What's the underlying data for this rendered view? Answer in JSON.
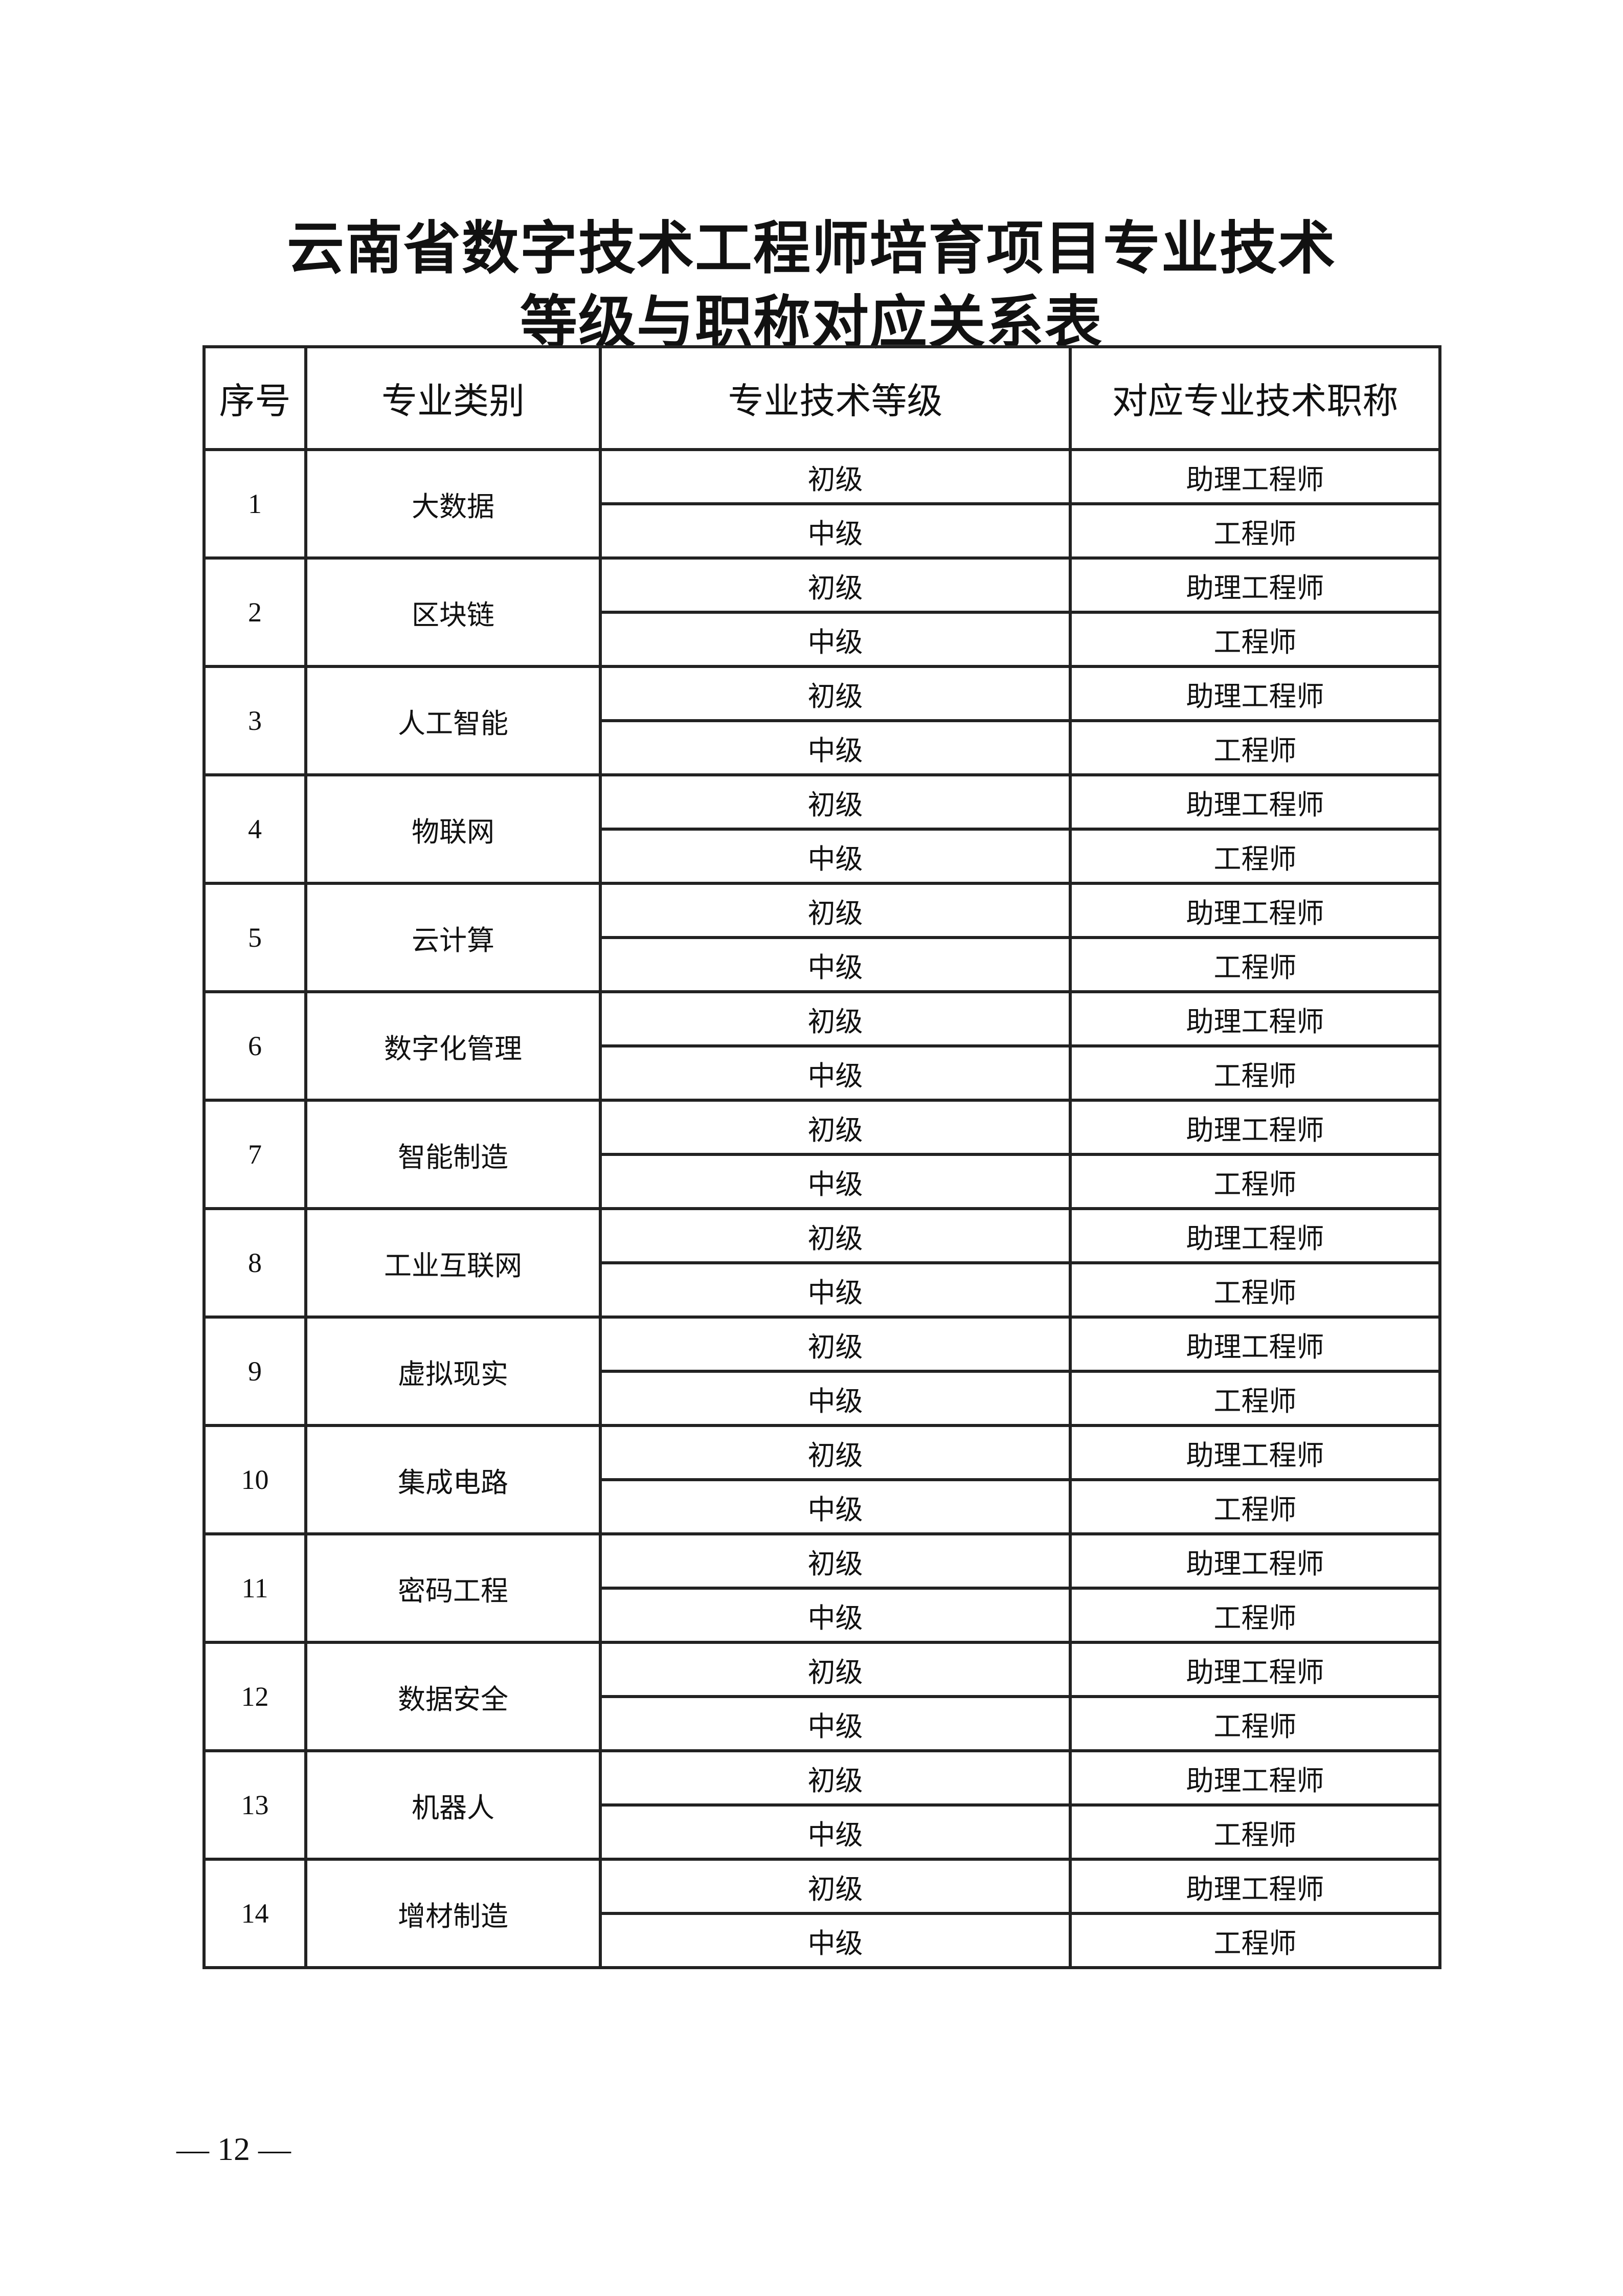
{
  "title_line1": "云南省数字技术工程师培育项目专业技术",
  "title_line2": "等级与职称对应关系表",
  "headers": [
    "序号",
    "专业类别",
    "专业技术等级",
    "对应专业技术职称"
  ],
  "rows": [
    {
      "no": "1",
      "category": "大数据",
      "levels": [
        {
          "level": "初级",
          "title": "助理工程师"
        },
        {
          "level": "中级",
          "title": "工程师"
        }
      ]
    },
    {
      "no": "2",
      "category": "区块链",
      "levels": [
        {
          "level": "初级",
          "title": "助理工程师"
        },
        {
          "level": "中级",
          "title": "工程师"
        }
      ]
    },
    {
      "no": "3",
      "category": "人工智能",
      "levels": [
        {
          "level": "初级",
          "title": "助理工程师"
        },
        {
          "level": "中级",
          "title": "工程师"
        }
      ]
    },
    {
      "no": "4",
      "category": "物联网",
      "levels": [
        {
          "level": "初级",
          "title": "助理工程师"
        },
        {
          "level": "中级",
          "title": "工程师"
        }
      ]
    },
    {
      "no": "5",
      "category": "云计算",
      "levels": [
        {
          "level": "初级",
          "title": "助理工程师"
        },
        {
          "level": "中级",
          "title": "工程师"
        }
      ]
    },
    {
      "no": "6",
      "category": "数字化管理",
      "levels": [
        {
          "level": "初级",
          "title": "助理工程师"
        },
        {
          "level": "中级",
          "title": "工程师"
        }
      ]
    },
    {
      "no": "7",
      "category": "智能制造",
      "levels": [
        {
          "level": "初级",
          "title": "助理工程师"
        },
        {
          "level": "中级",
          "title": "工程师"
        }
      ]
    },
    {
      "no": "8",
      "category": "工业互联网",
      "levels": [
        {
          "level": "初级",
          "title": "助理工程师"
        },
        {
          "level": "中级",
          "title": "工程师"
        }
      ]
    },
    {
      "no": "9",
      "category": "虚拟现实",
      "levels": [
        {
          "level": "初级",
          "title": "助理工程师"
        },
        {
          "level": "中级",
          "title": "工程师"
        }
      ]
    },
    {
      "no": "10",
      "category": "集成电路",
      "levels": [
        {
          "level": "初级",
          "title": "助理工程师"
        },
        {
          "level": "中级",
          "title": "工程师"
        }
      ]
    },
    {
      "no": "11",
      "category": "密码工程",
      "levels": [
        {
          "level": "初级",
          "title": "助理工程师"
        },
        {
          "level": "中级",
          "title": "工程师"
        }
      ]
    },
    {
      "no": "12",
      "category": "数据安全",
      "levels": [
        {
          "level": "初级",
          "title": "助理工程师"
        },
        {
          "level": "中级",
          "title": "工程师"
        }
      ]
    },
    {
      "no": "13",
      "category": "机器人",
      "levels": [
        {
          "level": "初级",
          "title": "助理工程师"
        },
        {
          "level": "中级",
          "title": "工程师"
        }
      ]
    },
    {
      "no": "14",
      "category": "增材制造",
      "levels": [
        {
          "level": "初级",
          "title": "助理工程师"
        },
        {
          "level": "中级",
          "title": "工程师"
        }
      ]
    }
  ],
  "page_number": "— 12 —"
}
